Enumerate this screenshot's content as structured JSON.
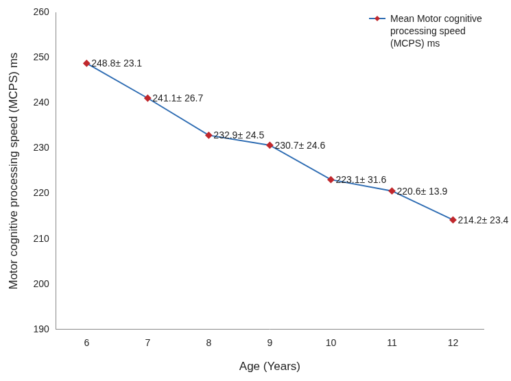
{
  "chart_data": {
    "type": "line",
    "x_label": "Age (Years)",
    "y_label": "Motor cognitive processing speed (MCPS) ms",
    "categories": [
      "6",
      "7",
      "8",
      "9",
      "10",
      "11",
      "12"
    ],
    "series": [
      {
        "name": "Mean Motor cognitive processing speed (MCPS) ms",
        "color": "#2f6db3",
        "marker": "diamond",
        "values": [
          248.8,
          241.1,
          232.9,
          230.7,
          223.1,
          220.6,
          214.2
        ],
        "value_labels": [
          "248.8± 23.1",
          "241.1± 26.7",
          "232.9± 24.5",
          "230.7± 24.6",
          "223.1± 31.6",
          "220.6± 13.9",
          "214.2± 23.4"
        ]
      }
    ],
    "ylim": [
      190,
      260
    ],
    "yticks": [
      190,
      200,
      210,
      220,
      230,
      240,
      250,
      260
    ],
    "grid": false,
    "legend": "top-right",
    "data_labels": true
  }
}
